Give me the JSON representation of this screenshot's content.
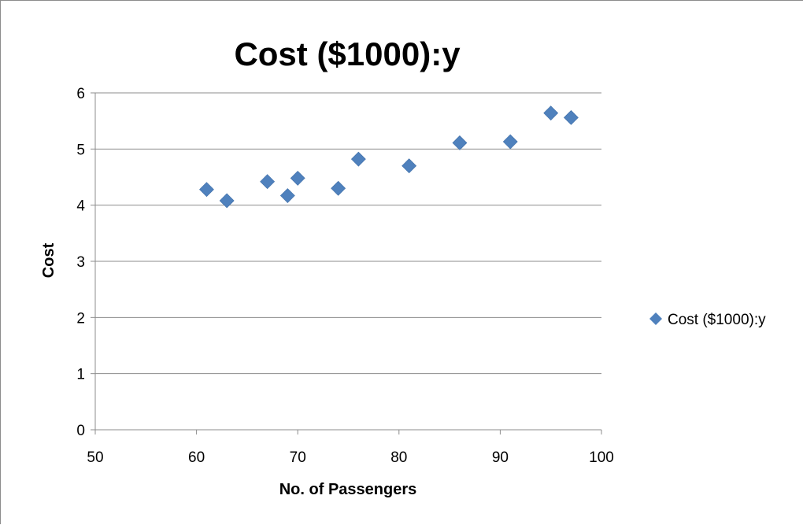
{
  "chart_data": {
    "type": "scatter",
    "title": "Cost ($1000):y",
    "xlabel": "No. of Passengers",
    "ylabel": "Cost",
    "xlim": [
      50,
      100
    ],
    "ylim": [
      0,
      6
    ],
    "xticks": [
      "50",
      "60",
      "70",
      "80",
      "90",
      "100"
    ],
    "yticks": [
      "0",
      "1",
      "2",
      "3",
      "4",
      "5",
      "6"
    ],
    "grid": "horizontal",
    "legend_position": "right",
    "series": [
      {
        "name": "Cost ($1000):y",
        "color": "#4f81bd",
        "marker": "diamond",
        "points": [
          {
            "x": 61,
            "y": 4.28
          },
          {
            "x": 63,
            "y": 4.08
          },
          {
            "x": 67,
            "y": 4.42
          },
          {
            "x": 69,
            "y": 4.17
          },
          {
            "x": 70,
            "y": 4.48
          },
          {
            "x": 74,
            "y": 4.3
          },
          {
            "x": 76,
            "y": 4.82
          },
          {
            "x": 81,
            "y": 4.7
          },
          {
            "x": 86,
            "y": 5.11
          },
          {
            "x": 91,
            "y": 5.13
          },
          {
            "x": 95,
            "y": 5.64
          },
          {
            "x": 97,
            "y": 5.56
          }
        ]
      }
    ]
  }
}
